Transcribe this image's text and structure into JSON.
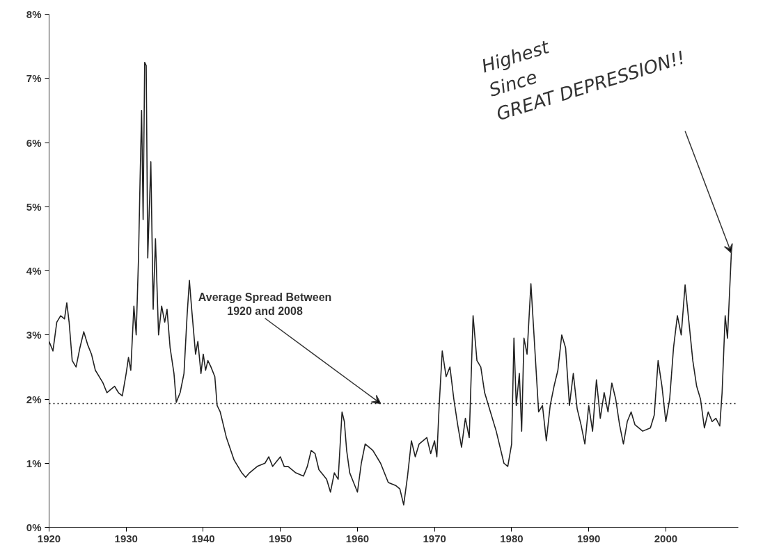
{
  "chart_data": {
    "type": "line",
    "x": [
      1920.0,
      1920.5,
      1921,
      1921.5,
      1922,
      1922.3,
      1922.6,
      1923,
      1923.5,
      1924,
      1924.5,
      1925,
      1925.5,
      1926,
      1926.5,
      1927,
      1927.5,
      1928,
      1928.5,
      1929,
      1929.5,
      1930,
      1930.3,
      1930.6,
      1931,
      1931.3,
      1931.6,
      1931.8,
      1932.0,
      1932.2,
      1932.4,
      1932.6,
      1932.8,
      1933.2,
      1933.5,
      1933.8,
      1934.2,
      1934.6,
      1935,
      1935.3,
      1935.7,
      1936.2,
      1936.5,
      1937,
      1937.5,
      1937.9,
      1938.2,
      1938.5,
      1939,
      1939.3,
      1939.7,
      1940,
      1940.3,
      1940.6,
      1941,
      1941.5,
      1941.8,
      1942.2,
      1943,
      1944,
      1945,
      1945.5,
      1946,
      1947,
      1948,
      1948.5,
      1949,
      1950,
      1950.5,
      1951,
      1952,
      1953,
      1953.5,
      1954,
      1954.5,
      1955,
      1956,
      1956.5,
      1957,
      1957.5,
      1958,
      1958.3,
      1958.6,
      1959,
      1959.5,
      1960,
      1960.5,
      1961,
      1961.5,
      1962,
      1963,
      1964,
      1965,
      1965.5,
      1966,
      1966.5,
      1967,
      1967.5,
      1968,
      1969,
      1969.5,
      1970,
      1970.3,
      1970.6,
      1971,
      1971.5,
      1972,
      1972.5,
      1973,
      1973.5,
      1974,
      1974.5,
      1975,
      1975.5,
      1976,
      1976.5,
      1977,
      1978,
      1979,
      1979.5,
      1980,
      1980.3,
      1980.6,
      1981,
      1981.3,
      1981.6,
      1982,
      1982.5,
      1983,
      1983.5,
      1984,
      1984.5,
      1985,
      1985.5,
      1986,
      1986.5,
      1987,
      1987.5,
      1988,
      1988.5,
      1989,
      1989.5,
      1990,
      1990.5,
      1991,
      1991.5,
      1992,
      1992.5,
      1993,
      1993.5,
      1994,
      1994.5,
      1995,
      1995.5,
      1996,
      1997,
      1998,
      1998.5,
      1999,
      1999.5,
      2000,
      2000.5,
      2001,
      2001.5,
      2002,
      2002.5,
      2003,
      2003.5,
      2004,
      2004.5,
      2005,
      2005.5,
      2006,
      2006.5,
      2007,
      2007.3,
      2007.7,
      2008,
      2008.5
    ],
    "series": [
      {
        "color": "#222222",
        "values": [
          2.9,
          2.75,
          3.2,
          3.3,
          3.25,
          3.5,
          3.2,
          2.6,
          2.5,
          2.8,
          3.05,
          2.85,
          2.7,
          2.45,
          2.35,
          2.25,
          2.1,
          2.15,
          2.2,
          2.1,
          2.05,
          2.4,
          2.65,
          2.45,
          3.45,
          3.0,
          4.2,
          5.4,
          6.5,
          4.8,
          7.25,
          7.2,
          4.2,
          5.7,
          3.4,
          4.5,
          3.0,
          3.45,
          3.2,
          3.4,
          2.8,
          2.4,
          1.95,
          2.1,
          2.4,
          3.3,
          3.85,
          3.4,
          2.7,
          2.9,
          2.4,
          2.7,
          2.45,
          2.6,
          2.5,
          2.35,
          1.9,
          1.8,
          1.4,
          1.05,
          0.85,
          0.78,
          0.85,
          0.95,
          1.0,
          1.1,
          0.95,
          1.1,
          0.95,
          0.95,
          0.85,
          0.8,
          0.95,
          1.2,
          1.15,
          0.9,
          0.75,
          0.55,
          0.85,
          0.75,
          1.8,
          1.65,
          1.2,
          0.85,
          0.7,
          0.55,
          1.0,
          1.3,
          1.25,
          1.2,
          1.0,
          0.7,
          0.65,
          0.6,
          0.35,
          0.8,
          1.35,
          1.1,
          1.3,
          1.4,
          1.15,
          1.35,
          1.1,
          1.9,
          2.75,
          2.35,
          2.5,
          2.0,
          1.6,
          1.25,
          1.7,
          1.4,
          3.3,
          2.6,
          2.5,
          2.1,
          1.9,
          1.5,
          1.0,
          0.95,
          1.3,
          2.95,
          1.9,
          2.4,
          1.5,
          2.95,
          2.7,
          3.8,
          2.8,
          1.8,
          1.9,
          1.35,
          1.9,
          2.2,
          2.45,
          3.0,
          2.8,
          1.9,
          2.4,
          1.85,
          1.6,
          1.3,
          1.9,
          1.5,
          2.3,
          1.7,
          2.1,
          1.8,
          2.25,
          2.0,
          1.6,
          1.3,
          1.65,
          1.8,
          1.6,
          1.5,
          1.55,
          1.75,
          2.6,
          2.2,
          1.65,
          2.0,
          2.8,
          3.3,
          3.0,
          3.78,
          3.2,
          2.6,
          2.2,
          2.0,
          1.55,
          1.8,
          1.65,
          1.7,
          1.58,
          2.1,
          3.3,
          2.95,
          4.28
        ]
      }
    ],
    "xlim": [
      1920,
      2009.4
    ],
    "xticks": [
      1920,
      1930,
      1940,
      1950,
      1960,
      1970,
      1980,
      1990,
      2000
    ],
    "ylim": [
      0,
      8
    ],
    "yticks": [
      {
        "value": 0,
        "label": "0%"
      },
      {
        "value": 1,
        "label": "1%"
      },
      {
        "value": 2,
        "label": "2%"
      },
      {
        "value": 3,
        "label": "3%"
      },
      {
        "value": 4,
        "label": "4%"
      },
      {
        "value": 5,
        "label": "5%"
      },
      {
        "value": 6,
        "label": "6%"
      },
      {
        "value": 7,
        "label": "7%"
      },
      {
        "value": 8,
        "label": "8%"
      }
    ],
    "ref_lines": [
      {
        "axis": "y",
        "value": 1.93,
        "line_style": "dotted",
        "color": "#222222"
      }
    ],
    "annotations": [
      {
        "text": "Average Spread Between\n1920 and 2008",
        "x": 1963,
        "y": 1.93
      },
      {
        "text": "Highest\nSince\nGREAT DEPRESSION!!",
        "x": 2008.5,
        "y": 4.28
      }
    ],
    "grid": false,
    "marker": "none",
    "line_style": "solid"
  }
}
